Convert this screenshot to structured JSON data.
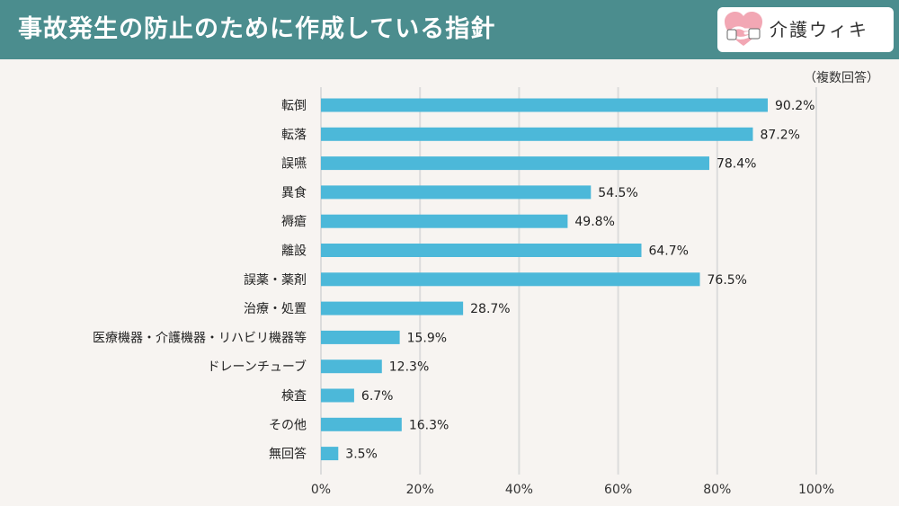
{
  "header": {
    "title": "事故発生の防止のために作成している指針",
    "brand_name": "介護ウィキ",
    "logo_icon": "heart-hands-icon",
    "background_color": "#4b8d8e"
  },
  "note": "（複数回答）",
  "chart_data": {
    "type": "bar",
    "orientation": "horizontal",
    "bar_color": "#4cb8d9",
    "grid": true,
    "xlim": [
      0,
      100
    ],
    "x_ticks": [
      "0%",
      "20%",
      "40%",
      "60%",
      "80%",
      "100%"
    ],
    "categories": [
      "転倒",
      "転落",
      "誤嚥",
      "異食",
      "褥瘡",
      "離設",
      "誤薬・薬剤",
      "治療・処置",
      "医療機器・介護機器・リハビリ機器等",
      "ドレーンチューブ",
      "検査",
      "その他",
      "無回答"
    ],
    "values": [
      90.2,
      87.2,
      78.4,
      54.5,
      49.8,
      64.7,
      76.5,
      28.7,
      15.9,
      12.3,
      6.7,
      16.3,
      3.5
    ],
    "value_labels": [
      "90.2%",
      "87.2%",
      "78.4%",
      "54.5%",
      "49.8%",
      "64.7%",
      "76.5%",
      "28.7%",
      "15.9%",
      "12.3%",
      "6.7%",
      "16.3%",
      "3.5%"
    ]
  }
}
